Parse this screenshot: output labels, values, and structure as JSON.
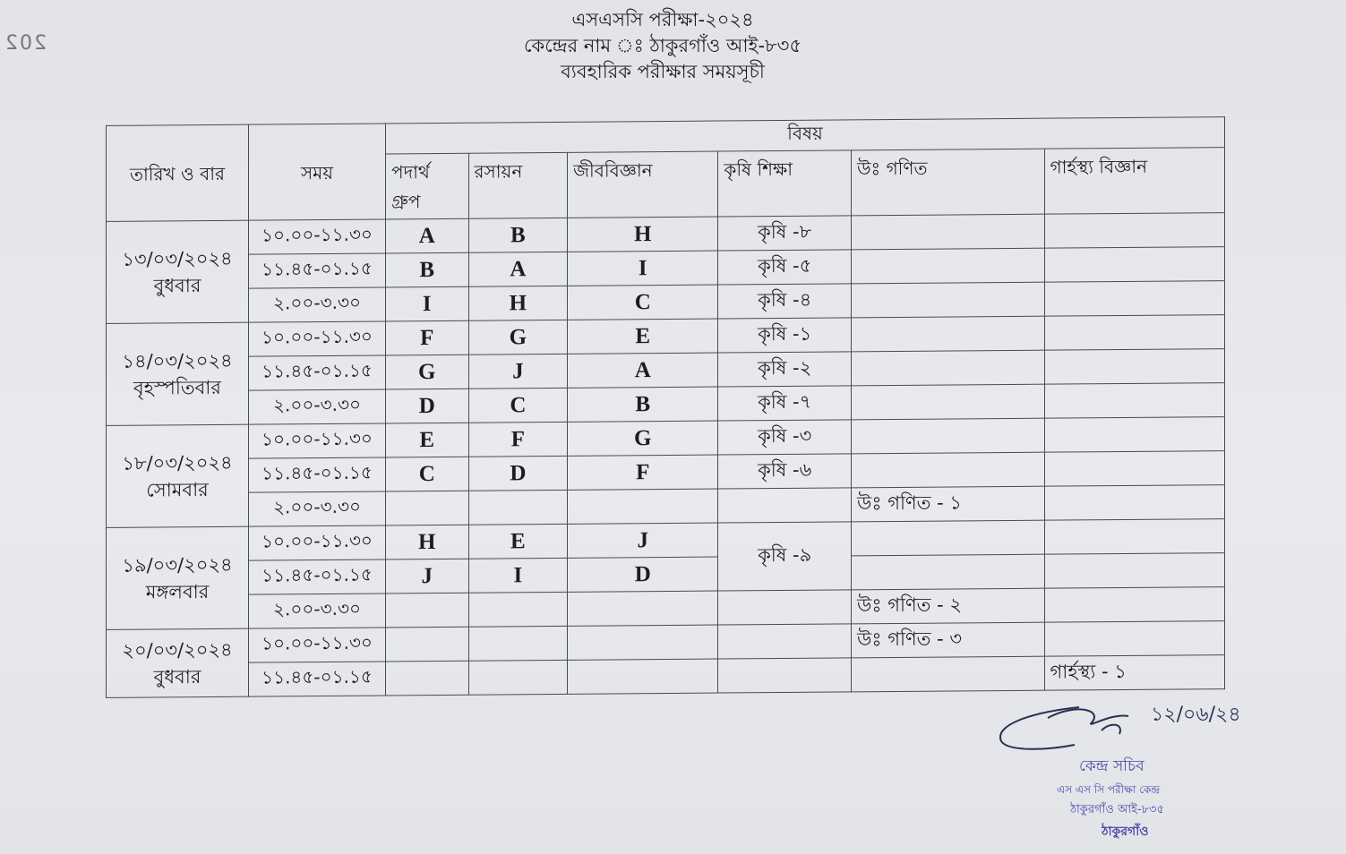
{
  "bleed_text": "202",
  "header": {
    "line1": "এসএসসি পরীক্ষা-২০২৪",
    "line2": "কেন্দ্রের নাম ঃ ঠাকুরগাঁও আই-৮৩৫",
    "line3": "ব্যবহারিক পরীক্ষার সময়সূচী"
  },
  "table": {
    "col_date": "তারিখ ও বার",
    "col_time": "সময়",
    "subject_header": "বিষয়",
    "subjects": [
      "পদার্থ",
      "রসায়ন",
      "জীববিজ্ঞান",
      "কৃষি শিক্ষা",
      "উঃ গণিত",
      "গার্হস্থ্য বিজ্ঞান"
    ],
    "group_label": "গ্রুপ",
    "days": [
      {
        "date": "১৩/০৩/২০২৪",
        "day": "বুধবার",
        "slots": [
          {
            "time": "১০.০০-১১.৩০",
            "cells": [
              "A",
              "B",
              "H",
              "কৃষি -৮",
              "",
              ""
            ]
          },
          {
            "time": "১১.৪৫-০১.১৫",
            "cells": [
              "B",
              "A",
              "I",
              "কৃষি -৫",
              "",
              ""
            ]
          },
          {
            "time": "২.০০-৩.৩০",
            "cells": [
              "I",
              "H",
              "C",
              "কৃষি -৪",
              "",
              ""
            ]
          }
        ]
      },
      {
        "date": "১৪/০৩/২০২৪",
        "day": "বৃহস্পতিবার",
        "slots": [
          {
            "time": "১০.০০-১১.৩০",
            "cells": [
              "F",
              "G",
              "E",
              "কৃষি -১",
              "",
              ""
            ]
          },
          {
            "time": "১১.৪৫-০১.১৫",
            "cells": [
              "G",
              "J",
              "A",
              "কৃষি -২",
              "",
              ""
            ]
          },
          {
            "time": "২.০০-৩.৩০",
            "cells": [
              "D",
              "C",
              "B",
              "কৃষি -৭",
              "",
              ""
            ]
          }
        ]
      },
      {
        "date": "১৮/০৩/২০২৪",
        "day": "সোমবার",
        "slots": [
          {
            "time": "১০.০০-১১.৩০",
            "cells": [
              "E",
              "F",
              "G",
              "কৃষি -৩",
              "",
              ""
            ]
          },
          {
            "time": "১১.৪৫-০১.১৫",
            "cells": [
              "C",
              "D",
              "F",
              "কৃষি -৬",
              "",
              ""
            ]
          },
          {
            "time": "২.০০-৩.৩০",
            "cells": [
              "",
              "",
              "",
              "",
              "উঃ গণিত - ১",
              ""
            ]
          }
        ]
      },
      {
        "date": "১৯/০৩/২০২৪",
        "day": "মঙ্গলবার",
        "slots": [
          {
            "time": "১০.০০-১১.৩০",
            "cells": [
              "H",
              "E",
              "J",
              "কৃষি -৯",
              "",
              ""
            ]
          },
          {
            "time": "১১.৪৫-০১.১৫",
            "cells": [
              "J",
              "I",
              "D",
              null,
              "",
              ""
            ]
          },
          {
            "time": "২.০০-৩.৩০",
            "cells": [
              "",
              "",
              "",
              "",
              "উঃ গণিত - ২",
              ""
            ]
          }
        ]
      },
      {
        "date": "২০/০৩/২০২৪",
        "day": "বুধবার",
        "slots": [
          {
            "time": "১০.০০-১১.৩০",
            "cells": [
              "",
              "",
              "",
              "",
              "উঃ গণিত - ৩",
              ""
            ]
          },
          {
            "time": "১১.৪৫-০১.১৫",
            "cells": [
              "",
              "",
              "",
              "",
              "",
              "গার্হস্থ্য - ১"
            ]
          }
        ]
      }
    ]
  },
  "stamp": {
    "signature_date": "১২/০৬/২৪",
    "line1": "কেন্দ্র সচিব",
    "line2": "এস এস সি পরীক্ষা কেন্দ্র",
    "line3": "ঠাকুরগাঁও আই-৮৩৫",
    "line4": "ঠাকুরগাঁও",
    "ink_color": "#4b47a8"
  }
}
